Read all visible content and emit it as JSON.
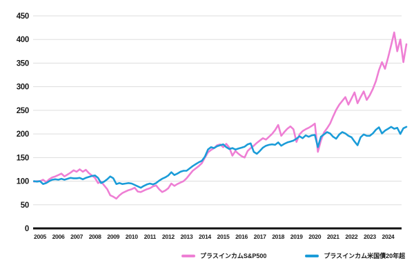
{
  "chart_data": {
    "type": "line",
    "title": "",
    "xlabel": "",
    "ylabel": "",
    "ylim": [
      0,
      450
    ],
    "y_ticks": [
      0,
      50,
      100,
      150,
      200,
      250,
      300,
      350,
      400,
      450
    ],
    "x_tick_labels": [
      "2005",
      "2006",
      "2007",
      "2008",
      "2009",
      "2010",
      "2011",
      "2012",
      "2013",
      "2014",
      "2015",
      "2016",
      "2017",
      "2018",
      "2019",
      "2020",
      "2021",
      "2022",
      "2023",
      "2024"
    ],
    "grid": "horizontal",
    "legend_position": "bottom",
    "baseline_value": 100,
    "x_start_year": 2004.6667,
    "x_step_years": 0.166667,
    "series": [
      {
        "name": "プラスインカムS&P500",
        "color": "#EE7FD4",
        "values": [
          99,
          100,
          100,
          103,
          98,
          104,
          108,
          110,
          113,
          116,
          110,
          114,
          118,
          123,
          120,
          125,
          120,
          124,
          117,
          112,
          107,
          96,
          99,
          91,
          83,
          70,
          67,
          63,
          70,
          75,
          78,
          81,
          83,
          86,
          78,
          77,
          80,
          83,
          85,
          89,
          91,
          83,
          77,
          80,
          85,
          95,
          90,
          94,
          97,
          100,
          106,
          114,
          122,
          127,
          132,
          138,
          150,
          161,
          166,
          170,
          176,
          178,
          172,
          179,
          171,
          154,
          164,
          158,
          153,
          150,
          164,
          170,
          175,
          181,
          186,
          191,
          188,
          194,
          200,
          208,
          219,
          196,
          204,
          211,
          216,
          210,
          183,
          199,
          206,
          210,
          213,
          217,
          222,
          162,
          186,
          203,
          212,
          222,
          237,
          251,
          262,
          270,
          278,
          262,
          275,
          288,
          265,
          278,
          290,
          272,
          282,
          295,
          312,
          335,
          352,
          338,
          362,
          388,
          415,
          375,
          400,
          352,
          390
        ]
      },
      {
        "name": "プラスインカム米国債20年超",
        "color": "#1B9CD8",
        "values": [
          100,
          99,
          100,
          94,
          96,
          100,
          103,
          104,
          103,
          105,
          103,
          105,
          107,
          106,
          106,
          107,
          104,
          107,
          109,
          111,
          112,
          107,
          96,
          99,
          104,
          110,
          106,
          94,
          96,
          94,
          95,
          96,
          95,
          92,
          89,
          86,
          90,
          93,
          95,
          93,
          96,
          101,
          105,
          108,
          112,
          119,
          113,
          116,
          120,
          122,
          122,
          127,
          132,
          136,
          140,
          143,
          152,
          167,
          172,
          170,
          174,
          176,
          178,
          172,
          168,
          170,
          167,
          169,
          171,
          173,
          178,
          180,
          162,
          158,
          164,
          171,
          175,
          177,
          178,
          177,
          182,
          175,
          179,
          182,
          184,
          186,
          190,
          195,
          191,
          197,
          194,
          197,
          198,
          172,
          194,
          199,
          204,
          201,
          194,
          190,
          199,
          204,
          201,
          196,
          193,
          184,
          176,
          193,
          199,
          196,
          196,
          201,
          209,
          214,
          201,
          207,
          211,
          215,
          211,
          213,
          200,
          212,
          215
        ]
      }
    ],
    "style": {
      "grid_color": "#dddddd",
      "axis_color": "#111111",
      "tick_color": "#1a1a1a",
      "background": "#ffffff"
    }
  }
}
